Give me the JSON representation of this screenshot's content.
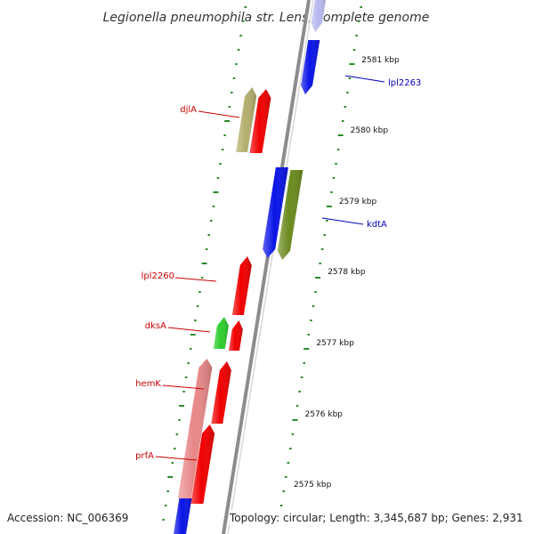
{
  "title": "Legionella pneumophila str. Lens, complete genome",
  "colors": {
    "backbone": "#8c8c8c",
    "tick": "#2a8a2a",
    "forward_label": "#cc0000",
    "reverse_label": "#0000bb"
  },
  "scale_labels": [
    "2581 kbp",
    "2580 kbp",
    "2579 kbp",
    "2578 kbp",
    "2577 kbp",
    "2576 kbp",
    "2575 kbp"
  ],
  "genes": [
    {
      "id": "lpl2263-a",
      "label": "",
      "strand": "reverse",
      "color": "#b8b8f0"
    },
    {
      "id": "lpl2263",
      "label": "lpl2263",
      "strand": "reverse",
      "color": "#0a14e6"
    },
    {
      "id": "djlA-orf",
      "label": "",
      "strand": "forward",
      "color": "#b3ae6e"
    },
    {
      "id": "djlA",
      "label": "djlA",
      "strand": "forward",
      "color": "#f00000"
    },
    {
      "id": "kdtA-orf",
      "label": "",
      "strand": "reverse",
      "color": "#0a14e6"
    },
    {
      "id": "kdtA",
      "label": "kdtA",
      "strand": "reverse",
      "color": "#6b8a1e"
    },
    {
      "id": "lpl2260",
      "label": "lpl2260",
      "strand": "forward",
      "color": "#f00000"
    },
    {
      "id": "dksA-orf",
      "label": "",
      "strand": "forward",
      "color": "#2ecc2e"
    },
    {
      "id": "dksA",
      "label": "dksA",
      "strand": "forward",
      "color": "#f00000"
    },
    {
      "id": "hemK-orf",
      "label": "",
      "strand": "forward",
      "color": "#e88888"
    },
    {
      "id": "hemK",
      "label": "hemK",
      "strand": "forward",
      "color": "#f00000"
    },
    {
      "id": "prfA",
      "label": "prfA",
      "strand": "forward",
      "color": "#f00000"
    },
    {
      "id": "bottom-orf",
      "label": "",
      "strand": "reverse",
      "color": "#0a14e6"
    }
  ],
  "footer": {
    "accession": "Accession: NC_006369",
    "summary": "Topology: circular; Length: 3,345,687 bp; Genes: 2,931"
  }
}
